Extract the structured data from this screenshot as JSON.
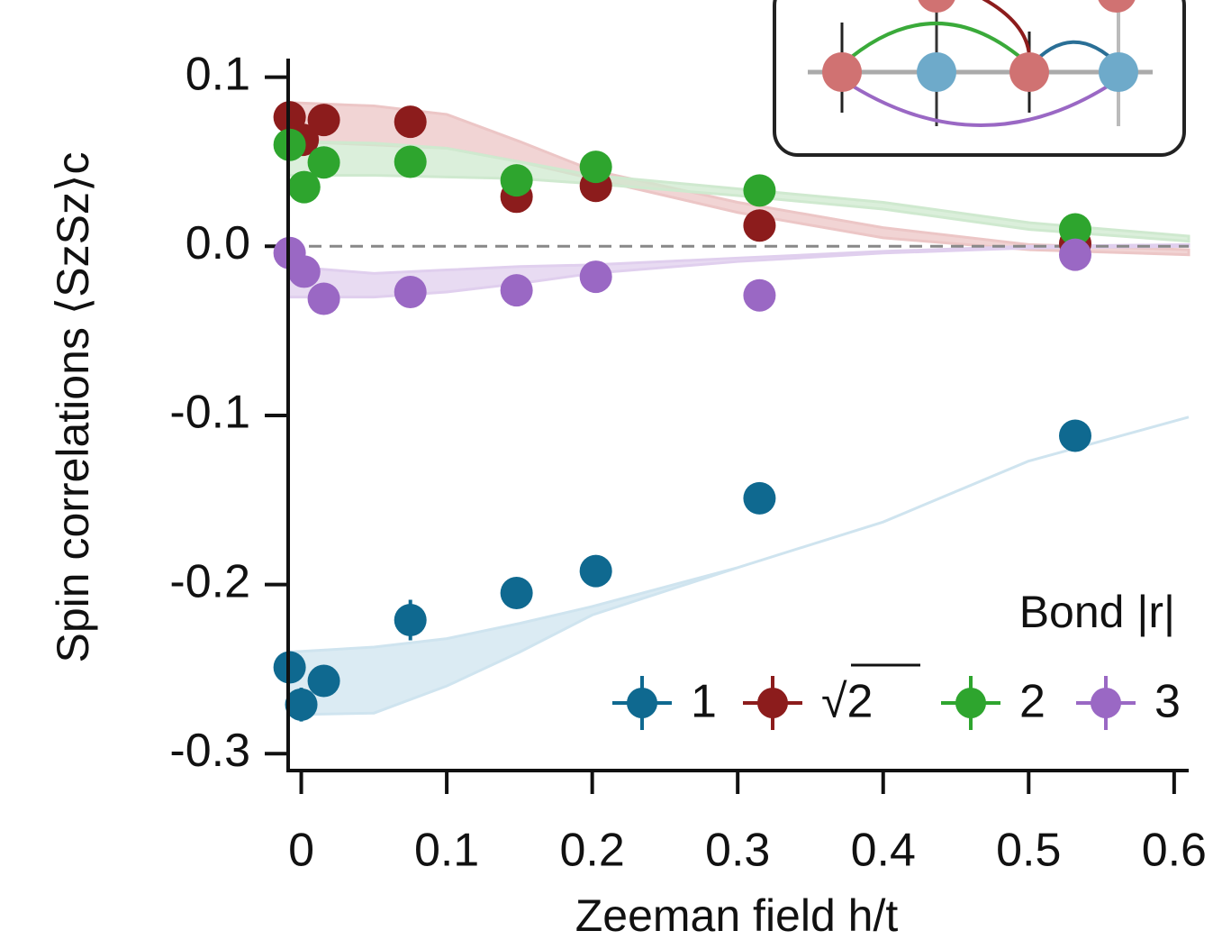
{
  "chart_data": {
    "type": "scatter",
    "xlabel": "Zeeman field h/t",
    "ylabel": "Spin correlations ⟨SzSz⟩c",
    "legend_title": "Bond |r|",
    "legend_position": "lower right",
    "xlim": [
      -0.009,
      0.61
    ],
    "ylim": [
      -0.31,
      0.111
    ],
    "xticks": [
      0,
      0.1,
      0.2,
      0.3,
      0.4,
      0.5,
      0.6
    ],
    "yticks": [
      0.1,
      {
        "value": 0,
        "label": "0.0"
      },
      -0.1,
      -0.2,
      -0.3
    ],
    "hline": 0,
    "band_x": [
      -0.009,
      0.05,
      0.1,
      0.15,
      0.2,
      0.3,
      0.4,
      0.5,
      0.61
    ],
    "series": [
      {
        "name": "1",
        "color": "#0f6990",
        "band_color": "#cfe4ef",
        "x": [
          -0.008,
          0.0,
          0.0155,
          0.075,
          0.148,
          0.2025,
          0.315,
          0.532
        ],
        "values": [
          -0.249,
          -0.271,
          -0.257,
          -0.221,
          -0.205,
          -0.192,
          -0.149,
          -0.112
        ],
        "errors": [
          0.008,
          0.01,
          0.008,
          0.012,
          0.007,
          0.008,
          0.007,
          0.007
        ],
        "band_upper": [
          -0.24,
          -0.237,
          -0.232,
          -0.223,
          -0.213,
          -0.19,
          -0.163,
          -0.127,
          -0.101
        ],
        "band_lower": [
          -0.277,
          -0.276,
          -0.26,
          -0.24,
          -0.218,
          -0.19,
          -0.163,
          -0.127,
          -0.101
        ]
      },
      {
        "name": "√2",
        "color": "#8c1c1c",
        "band_color": "#ecc6c6",
        "x": [
          -0.008,
          0.001,
          0.0155,
          0.075,
          0.148,
          0.2025,
          0.315,
          0.532
        ],
        "values": [
          0.0763,
          0.063,
          0.0747,
          0.0736,
          0.0293,
          0.0357,
          0.0123,
          0.0016
        ],
        "errors": [
          0.007,
          0.007,
          0.006,
          0.008,
          0.006,
          0.006,
          0.006,
          0.006
        ],
        "band_upper": [
          0.085,
          0.083,
          0.078,
          0.062,
          0.045,
          0.026,
          0.011,
          0.001,
          -0.002
        ],
        "band_lower": [
          0.062,
          0.06,
          0.058,
          0.05,
          0.04,
          0.02,
          0.005,
          -0.002,
          -0.005
        ]
      },
      {
        "name": "2",
        "color": "#2ea52e",
        "band_color": "#cfe9cf",
        "x": [
          -0.008,
          0.002,
          0.0155,
          0.075,
          0.148,
          0.2025,
          0.315,
          0.532
        ],
        "values": [
          0.06,
          0.035,
          0.0496,
          0.05,
          0.039,
          0.047,
          0.033,
          0.01
        ],
        "errors": [
          0.006,
          0.006,
          0.006,
          0.007,
          0.006,
          0.006,
          0.006,
          0.006
        ],
        "band_upper": [
          0.062,
          0.061,
          0.058,
          0.05,
          0.042,
          0.034,
          0.026,
          0.014,
          0.006
        ],
        "band_lower": [
          0.042,
          0.042,
          0.041,
          0.04,
          0.037,
          0.03,
          0.022,
          0.01,
          0.003
        ]
      },
      {
        "name": "3",
        "color": "#9a68c4",
        "band_color": "#e0cfee",
        "x": [
          -0.008,
          0.002,
          0.0155,
          0.075,
          0.148,
          0.2025,
          0.315,
          0.532
        ],
        "values": [
          -0.004,
          -0.015,
          -0.031,
          -0.027,
          -0.026,
          -0.018,
          -0.029,
          -0.005
        ],
        "errors": [
          0.006,
          0.006,
          0.006,
          0.008,
          0.006,
          0.006,
          0.006,
          0.006
        ],
        "band_upper": [
          -0.012,
          -0.016,
          -0.014,
          -0.012,
          -0.011,
          -0.007,
          -0.003,
          0,
          0.001
        ],
        "band_lower": [
          -0.03,
          -0.03,
          -0.027,
          -0.022,
          -0.016,
          -0.009,
          -0.004,
          -0.001,
          0
        ]
      }
    ]
  }
}
